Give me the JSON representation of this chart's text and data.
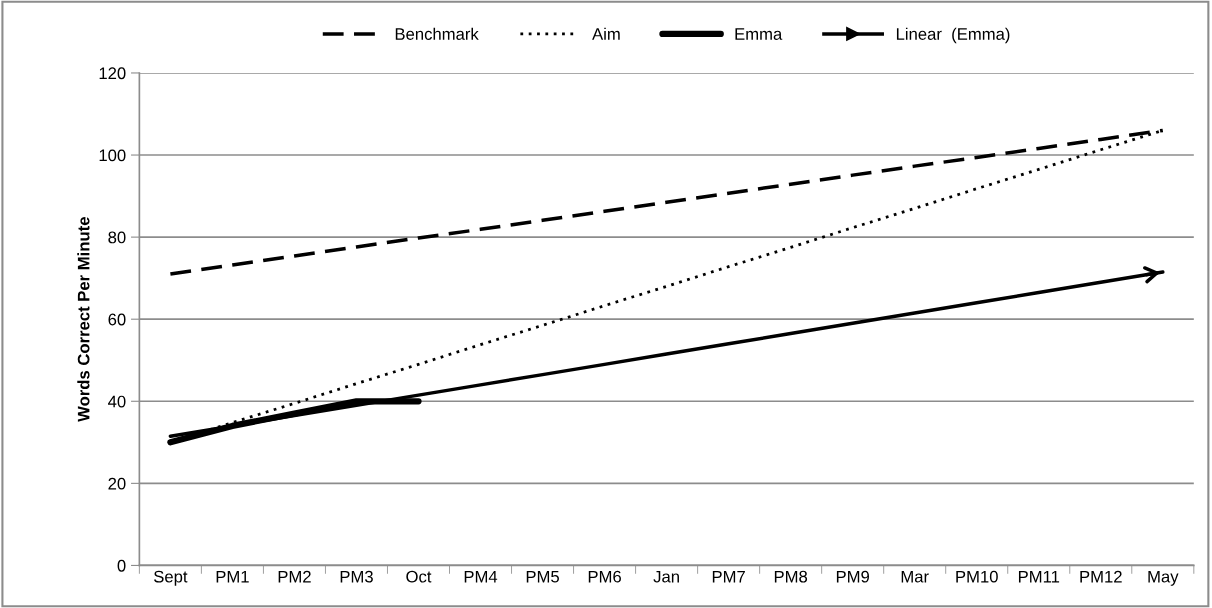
{
  "chart_data": {
    "type": "line",
    "ylabel": "Words Correct Per Minute",
    "categories": [
      "Sept",
      "PM1",
      "PM2",
      "PM3",
      "Oct",
      "PM4",
      "PM5",
      "PM6",
      "Jan",
      "PM7",
      "PM8",
      "PM9",
      "Mar",
      "PM10",
      "PM11",
      "PM12",
      "May"
    ],
    "series": [
      {
        "name": "Benchmark",
        "color": "#000000",
        "line_style": "dashed",
        "values": [
          71,
          73.2,
          75.4,
          77.6,
          79.8,
          81.9,
          84.1,
          86.3,
          88.5,
          90.7,
          92.9,
          95.1,
          97.3,
          99.4,
          101.6,
          103.8,
          106
        ]
      },
      {
        "name": "Aim",
        "color": "#000000",
        "line_style": "dotted",
        "values": [
          30,
          34.8,
          39.5,
          44.3,
          49,
          53.8,
          58.5,
          63.3,
          68,
          72.8,
          77.5,
          82.3,
          87,
          91.8,
          96.5,
          101.3,
          106
        ]
      },
      {
        "name": "Emma",
        "color": "#000000",
        "line_style": "solid",
        "values": [
          30,
          34,
          37,
          40,
          40,
          null,
          null,
          null,
          null,
          null,
          null,
          null,
          null,
          null,
          null,
          null,
          null
        ]
      },
      {
        "name": "Linear  (Emma)",
        "color": "#000000",
        "line_style": "solid",
        "values": [
          31.5,
          34,
          36.5,
          39,
          41.5,
          44,
          46.5,
          49,
          51.5,
          54,
          56.5,
          59,
          61.5,
          64,
          66.5,
          69,
          71.5
        ]
      }
    ],
    "ylim": [
      0,
      120
    ],
    "yticks": [
      0,
      20,
      40,
      60,
      80,
      100,
      120
    ],
    "grid": "y",
    "legend": "top",
    "marker": "none"
  }
}
